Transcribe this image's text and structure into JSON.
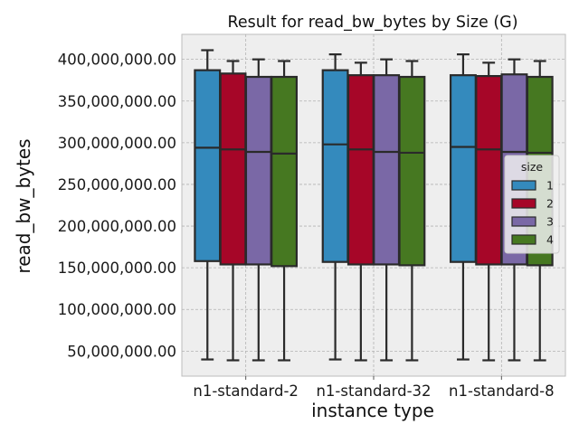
{
  "chart_data": {
    "type": "box",
    "title": "Result for read_bw_bytes by Size (G)",
    "xlabel": "instance type",
    "ylabel": "read_bw_bytes",
    "categories": [
      "n1-standard-2",
      "n1-standard-32",
      "n1-standard-8"
    ],
    "yticks": [
      50000000,
      100000000,
      150000000,
      200000000,
      250000000,
      300000000,
      350000000,
      400000000
    ],
    "ytick_labels": [
      "50,000,000.00",
      "100,000,000.00",
      "150,000,000.00",
      "200,000,000.00",
      "250,000,000.00",
      "300,000,000.00",
      "350,000,000.00",
      "400,000,000.00"
    ],
    "ylim": [
      20000000,
      430000000
    ],
    "grid": true,
    "legend": {
      "title": "size",
      "placement": "right"
    },
    "series": [
      {
        "name": "1",
        "color": "#348abd",
        "boxes": [
          {
            "whislo": 40000000,
            "q1": 158000000,
            "med": 294000000,
            "q3": 387000000,
            "whishi": 411000000
          },
          {
            "whislo": 40000000,
            "q1": 157000000,
            "med": 298000000,
            "q3": 387000000,
            "whishi": 406000000
          },
          {
            "whislo": 40000000,
            "q1": 157000000,
            "med": 295000000,
            "q3": 381000000,
            "whishi": 406000000
          }
        ]
      },
      {
        "name": "2",
        "color": "#a60628",
        "boxes": [
          {
            "whislo": 39000000,
            "q1": 154000000,
            "med": 292000000,
            "q3": 383000000,
            "whishi": 398000000
          },
          {
            "whislo": 39000000,
            "q1": 154000000,
            "med": 292000000,
            "q3": 381000000,
            "whishi": 396000000
          },
          {
            "whislo": 39000000,
            "q1": 154000000,
            "med": 292000000,
            "q3": 380000000,
            "whishi": 396000000
          }
        ]
      },
      {
        "name": "3",
        "color": "#7a68a6",
        "boxes": [
          {
            "whislo": 39000000,
            "q1": 154000000,
            "med": 289000000,
            "q3": 379000000,
            "whishi": 400000000
          },
          {
            "whislo": 39000000,
            "q1": 154000000,
            "med": 289000000,
            "q3": 381000000,
            "whishi": 400000000
          },
          {
            "whislo": 39000000,
            "q1": 154000000,
            "med": 289000000,
            "q3": 382000000,
            "whishi": 400000000
          }
        ]
      },
      {
        "name": "4",
        "color": "#467821",
        "boxes": [
          {
            "whislo": 39000000,
            "q1": 152000000,
            "med": 287000000,
            "q3": 379000000,
            "whishi": 398000000
          },
          {
            "whislo": 39000000,
            "q1": 153000000,
            "med": 288000000,
            "q3": 379000000,
            "whishi": 398000000
          },
          {
            "whislo": 39000000,
            "q1": 153000000,
            "med": 288000000,
            "q3": 379000000,
            "whishi": 398000000
          }
        ]
      }
    ]
  }
}
